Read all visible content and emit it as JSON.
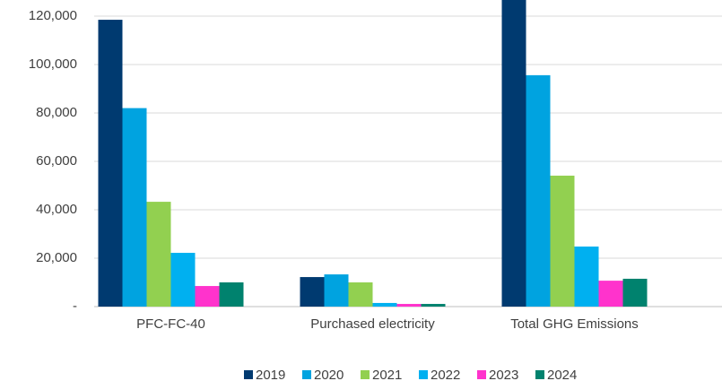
{
  "chart_data": {
    "type": "bar",
    "categories": [
      "PFC-FC-40",
      "Purchased electricity",
      "Total GHG Emissions"
    ],
    "series": [
      {
        "name": "2019",
        "color": "#003a70",
        "values": [
          118500,
          12200,
          131000
        ]
      },
      {
        "name": "2020",
        "color": "#00a3e0",
        "values": [
          82000,
          13300,
          95600
        ]
      },
      {
        "name": "2021",
        "color": "#92d050",
        "values": [
          43300,
          10000,
          54100
        ]
      },
      {
        "name": "2022",
        "color": "#00b0f0",
        "values": [
          22200,
          1500,
          24800
        ]
      },
      {
        "name": "2023",
        "color": "#ff33cc",
        "values": [
          8500,
          1100,
          10700
        ]
      },
      {
        "name": "2024",
        "color": "#00826e",
        "values": [
          10000,
          1100,
          11500
        ]
      }
    ],
    "ylim": [
      0,
      126667
    ],
    "yticks": [
      {
        "value": 0,
        "label": "-"
      },
      {
        "value": 20000,
        "label": "20,000"
      },
      {
        "value": 40000,
        "label": "40,000"
      },
      {
        "value": 60000,
        "label": "60,000"
      },
      {
        "value": 80000,
        "label": "80,000"
      },
      {
        "value": 100000,
        "label": "100,000"
      },
      {
        "value": 120000,
        "label": "120,000"
      }
    ],
    "grid": true,
    "legend": "bottom"
  }
}
